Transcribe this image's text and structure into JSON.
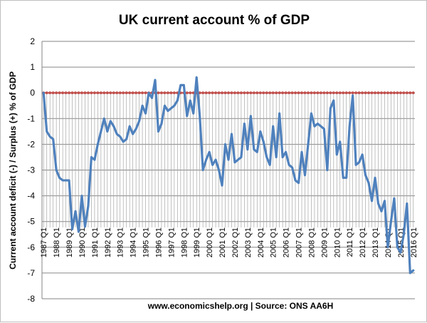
{
  "chart_data": {
    "type": "line",
    "title": "UK current account % of GDP",
    "ylabel": "Current account  deficit (-) / Surplus (+) % of GDP",
    "xlabel": "",
    "source": "www.economicshelp.org | Source: ONS AA6H",
    "ylim": [
      -8,
      2
    ],
    "yticks": [
      2,
      1,
      0,
      -1,
      -2,
      -3,
      -4,
      -5,
      -6,
      -7,
      -8
    ],
    "grid": true,
    "x_tick_labels": [
      "1987 Q1",
      "1988 Q1",
      "1989 Q1",
      "1990 Q1",
      "1991 Q1",
      "1992 Q1",
      "1993 Q1",
      "1994 Q1",
      "1995 Q1",
      "1996 Q1",
      "1997 Q1",
      "1998 Q1",
      "1999 Q1",
      "2000 Q1",
      "2001 Q1",
      "2002 Q1",
      "2003 Q1",
      "2004 Q1",
      "2005 Q1",
      "2006 Q1",
      "2007 Q1",
      "2008 Q1",
      "2009 Q1",
      "2010 Q1",
      "2011 Q1",
      "2012 Q1",
      "2013 Q1",
      "2014 Q1",
      "2015 Q1",
      "2016 Q1"
    ],
    "colors": {
      "current_account": "#4f81bd",
      "zero_line": "#c0504d"
    },
    "series": [
      {
        "values": [
          0,
          -1.5,
          -1.7,
          -1.8,
          -3.0,
          -3.3,
          -3.4,
          -3.4,
          -3.4,
          -5.3,
          -4.6,
          -5.4,
          -4.0,
          -5.2,
          -4.4,
          -2.5,
          -2.6,
          -2.0,
          -1.5,
          -1.0,
          -1.5,
          -1.1,
          -1.3,
          -1.6,
          -1.7,
          -1.9,
          -1.8,
          -1.3,
          -1.6,
          -1.4,
          -1.1,
          -0.5,
          -0.8,
          0.0,
          -0.2,
          0.5,
          -1.5,
          -1.2,
          -0.5,
          -0.7,
          -0.6,
          -0.5,
          -0.3,
          0.3,
          0.3,
          -0.9,
          -0.3,
          -0.8,
          0.6,
          -0.9,
          -3.0,
          -2.6,
          -2.3,
          -2.8,
          -2.6,
          -3.0,
          -3.6,
          -2.0,
          -2.6,
          -1.6,
          -2.7,
          -2.6,
          -2.5,
          -1.2,
          -2.2,
          -0.9,
          -2.2,
          -2.3,
          -1.5,
          -1.9,
          -2.5,
          -2.8,
          -1.3,
          -2.5,
          -0.8,
          -2.5,
          -2.3,
          -2.8,
          -2.9,
          -3.4,
          -3.5,
          -2.3,
          -3.2,
          -2.0,
          -0.8,
          -1.3,
          -1.2,
          -1.3,
          -1.4,
          -3.0,
          -0.6,
          -0.3,
          -2.4,
          -1.9,
          -3.3,
          -3.3,
          -1.3,
          -0.1,
          -2.8,
          -2.7,
          -2.4,
          -3.2,
          -3.5,
          -4.2,
          -3.3,
          -4.3,
          -4.6,
          -4.2,
          -6.0,
          -5.0,
          -4.1,
          -6.0,
          -6.2,
          -5.5,
          -4.3,
          -7.0,
          -6.9
        ]
      }
    ]
  }
}
